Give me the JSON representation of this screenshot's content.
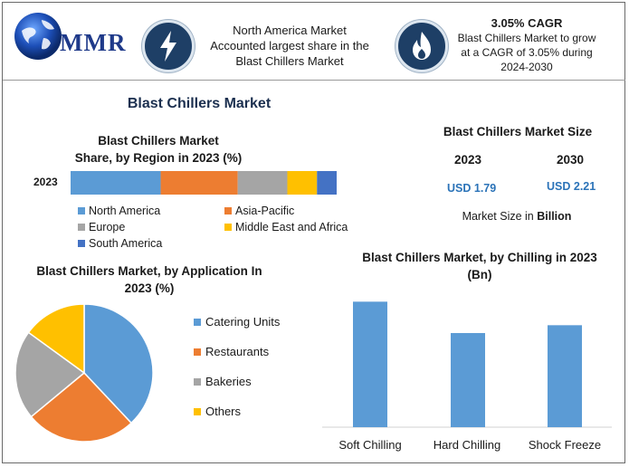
{
  "header": {
    "brand": "MMR",
    "info_left_lines": [
      "North America Market",
      "Accounted largest share in the",
      "Blast Chillers Market"
    ],
    "cagr_title": "3.05% CAGR",
    "cagr_lines": [
      "Blast Chillers Market to grow",
      "at a CAGR of 3.05% during",
      "2024-2030"
    ],
    "icons": [
      "globe-icon",
      "lightning-icon",
      "flame-icon"
    ]
  },
  "main_title": "Blast Chillers Market",
  "colors": {
    "blue": "#5b9bd5",
    "orange": "#ed7d31",
    "gray": "#a5a5a5",
    "yellow": "#ffc000",
    "darkblue": "#4472c4",
    "accent": "#2b73b8",
    "icon_bg": "#1e3f66"
  },
  "market_size": {
    "title": "Blast Chillers Market Size",
    "year_a": "2023",
    "year_b": "2030",
    "value_a": "USD 1.79",
    "value_b": "USD 2.21",
    "unit_prefix": "Market Size in ",
    "unit_bold": "Billion"
  },
  "chart_data": [
    {
      "type": "bar",
      "orientation": "horizontal-stacked",
      "title_lines": [
        "Blast Chillers Market",
        "Share, by Region in 2023 (%)"
      ],
      "categories": [
        "2023"
      ],
      "series": [
        {
          "name": "North America",
          "values": [
            32.5
          ]
        },
        {
          "name": "Asia-Pacific",
          "values": [
            27.8
          ]
        },
        {
          "name": "Europe",
          "values": [
            17.9
          ]
        },
        {
          "name": "Middle East and Africa",
          "values": [
            10.7
          ]
        },
        {
          "name": "South America",
          "values": [
            7.1
          ]
        }
      ],
      "legend_position": "bottom"
    },
    {
      "type": "pie",
      "title_lines": [
        "Blast Chillers Market, by Application In",
        "2023 (%)"
      ],
      "categories": [
        "Catering Units",
        "Restaurants",
        "Bakeries",
        "Others"
      ],
      "values": [
        38,
        26,
        21,
        15
      ],
      "legend_position": "right"
    },
    {
      "type": "bar",
      "title_lines": [
        "Blast Chillers Market, by Chilling in 2023",
        "(Bn)"
      ],
      "categories": [
        "Soft Chilling",
        "Hard Chilling",
        "Shock Freeze"
      ],
      "values": [
        0.8,
        0.6,
        0.65
      ],
      "ylim": [
        0,
        0.9
      ],
      "grid": false
    }
  ]
}
